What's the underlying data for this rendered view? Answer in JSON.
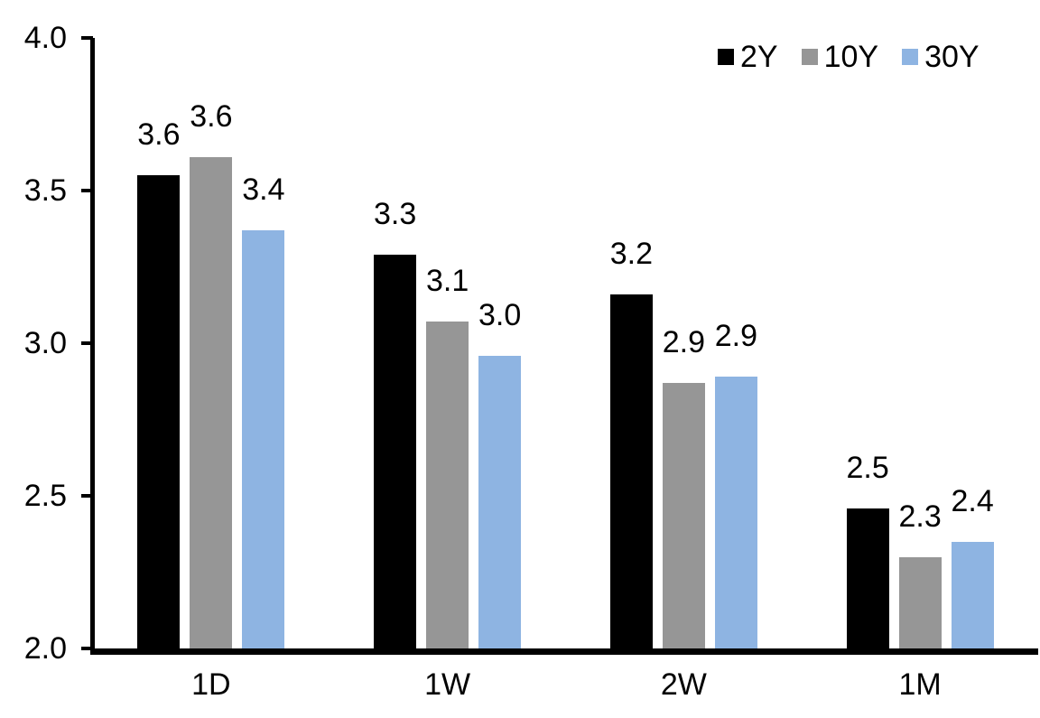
{
  "chart_data": {
    "type": "bar",
    "title": "",
    "xlabel": "",
    "ylabel": "",
    "categories": [
      "1D",
      "1W",
      "2W",
      "1M"
    ],
    "series": [
      {
        "name": "2Y",
        "color": "#000000",
        "values": [
          3.55,
          3.29,
          3.16,
          2.46
        ],
        "labels": [
          "3.6",
          "3.3",
          "3.2",
          "2.5"
        ]
      },
      {
        "name": "10Y",
        "color": "#969696",
        "values": [
          3.61,
          3.07,
          2.87,
          2.3
        ],
        "labels": [
          "3.6",
          "3.1",
          "2.9",
          "2.3"
        ]
      },
      {
        "name": "30Y",
        "color": "#8EB4E2",
        "values": [
          3.37,
          2.96,
          2.89,
          2.35
        ],
        "labels": [
          "3.4",
          "3.0",
          "2.9",
          "2.4"
        ]
      }
    ],
    "ylim": [
      2.0,
      4.0
    ],
    "yticks": [
      {
        "value": 4.0,
        "label": "4.0"
      },
      {
        "value": 3.5,
        "label": "3.5"
      },
      {
        "value": 3.0,
        "label": "3.0"
      },
      {
        "value": 2.5,
        "label": "2.5"
      },
      {
        "value": 2.0,
        "label": "2.0"
      }
    ],
    "grid": false,
    "legend_position": "top-right",
    "axis_color": "#000000",
    "text_color": "#000000",
    "background_color": "#ffffff"
  }
}
